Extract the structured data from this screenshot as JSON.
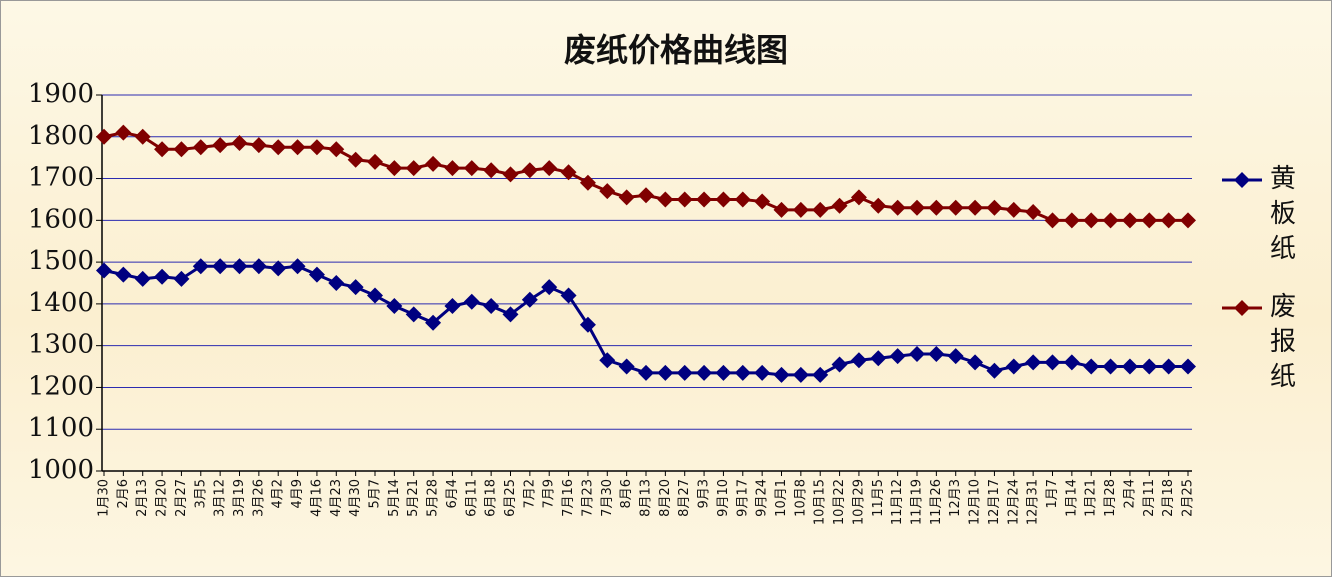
{
  "chart_data": {
    "type": "line",
    "title": "废纸价格曲线图",
    "categories": [
      "1月30",
      "2月6",
      "2月13",
      "2月20",
      "2月27",
      "3月5",
      "3月12",
      "3月19",
      "3月26",
      "4月2",
      "4月9",
      "4月16",
      "4月23",
      "4月30",
      "5月7",
      "5月14",
      "5月21",
      "5月28",
      "6月4",
      "6月11",
      "6月18",
      "6月25",
      "7月2",
      "7月9",
      "7月16",
      "7月23",
      "7月30",
      "8月6",
      "8月13",
      "8月20",
      "8月27",
      "9月3",
      "9月10",
      "9月17",
      "9月24",
      "10月1",
      "10月8",
      "10月15",
      "10月22",
      "10月29",
      "11月5",
      "11月12",
      "11月19",
      "11月26",
      "12月3",
      "12月10",
      "12月17",
      "12月24",
      "12月31",
      "1月7",
      "1月14",
      "1月21",
      "1月28",
      "2月4",
      "2月11",
      "2月18",
      "2月25"
    ],
    "series": [
      {
        "name": "黄板纸",
        "color": "#000080",
        "values": [
          1480,
          1470,
          1460,
          1465,
          1460,
          1490,
          1490,
          1490,
          1490,
          1485,
          1490,
          1470,
          1450,
          1440,
          1420,
          1395,
          1375,
          1355,
          1395,
          1405,
          1395,
          1375,
          1410,
          1440,
          1420,
          1350,
          1265,
          1250,
          1235,
          1235,
          1235,
          1235,
          1235,
          1235,
          1235,
          1230,
          1230,
          1230,
          1255,
          1265,
          1270,
          1275,
          1280,
          1280,
          1275,
          1260,
          1240,
          1250,
          1260,
          1260,
          1260,
          1250,
          1250,
          1250,
          1250,
          1250,
          1250
        ]
      },
      {
        "name": "废报纸",
        "color": "#800000",
        "values": [
          1800,
          1810,
          1800,
          1770,
          1770,
          1775,
          1780,
          1785,
          1780,
          1775,
          1775,
          1775,
          1770,
          1745,
          1740,
          1725,
          1725,
          1735,
          1725,
          1725,
          1720,
          1710,
          1720,
          1725,
          1715,
          1690,
          1670,
          1655,
          1660,
          1650,
          1650,
          1650,
          1650,
          1650,
          1645,
          1625,
          1625,
          1625,
          1635,
          1655,
          1635,
          1630,
          1630,
          1630,
          1630,
          1630,
          1630,
          1625,
          1620,
          1600,
          1600,
          1600,
          1600,
          1600,
          1600,
          1600,
          1600
        ]
      }
    ],
    "ylim": [
      1000,
      1900
    ],
    "yticks": [
      1000,
      1100,
      1200,
      1300,
      1400,
      1500,
      1600,
      1700,
      1800,
      1900
    ],
    "grid": true,
    "legend": "right"
  }
}
